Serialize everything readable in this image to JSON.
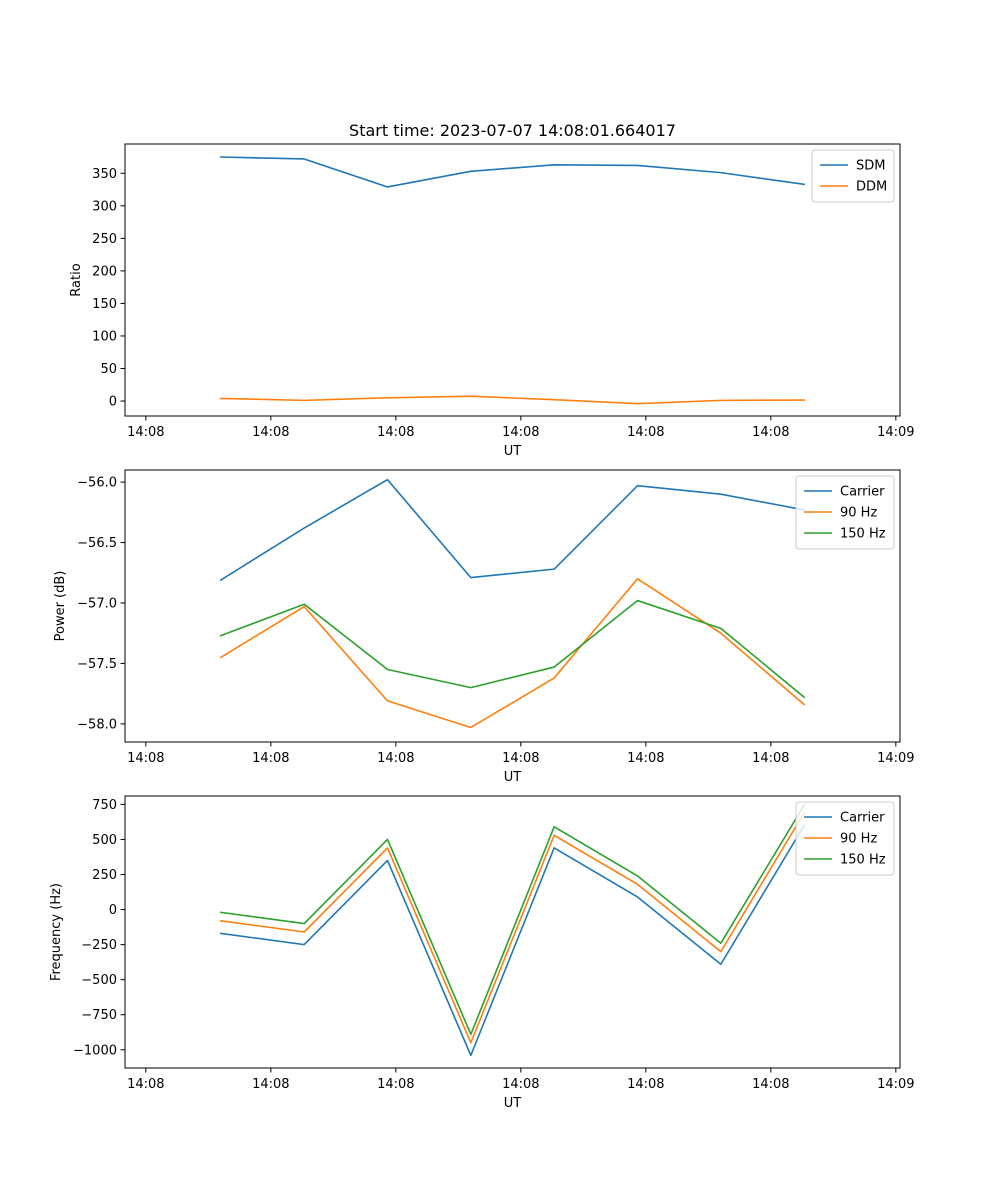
{
  "figure": {
    "title": "Start time: 2023-07-07 14:08:01.664017"
  },
  "chart_data": [
    {
      "type": "line",
      "title": "Start time: 2023-07-07 14:08:01.664017",
      "xlabel": "UT",
      "ylabel": "Ratio",
      "x": [
        0.9,
        1.9,
        2.9,
        3.9,
        4.9,
        5.9,
        6.9,
        7.9
      ],
      "x_ticks": [
        0,
        1.5,
        3,
        4.5,
        6,
        7.5,
        9
      ],
      "x_tick_labels": [
        "14:08",
        "14:08",
        "14:08",
        "14:08",
        "14:08",
        "14:08",
        "14:09"
      ],
      "xlim": [
        -0.25,
        9.05
      ],
      "ylim": [
        -23,
        395
      ],
      "y_ticks": [
        0,
        50,
        100,
        150,
        200,
        250,
        300,
        350
      ],
      "y_tick_labels": [
        "0",
        "50",
        "100",
        "150",
        "200",
        "250",
        "300",
        "350"
      ],
      "legend_position": "top-right",
      "series": [
        {
          "name": "SDM",
          "color": "#1f77b4",
          "values": [
            375,
            372,
            329,
            353,
            363,
            362,
            351,
            333
          ]
        },
        {
          "name": "DDM",
          "color": "#ff7f0e",
          "values": [
            4,
            1,
            5,
            7.5,
            2,
            -4,
            1,
            1.5
          ]
        }
      ]
    },
    {
      "type": "line",
      "title": "",
      "xlabel": "UT",
      "ylabel": "Power (dB)",
      "x": [
        0.9,
        1.9,
        2.9,
        3.9,
        4.9,
        5.9,
        6.9,
        7.9
      ],
      "x_ticks": [
        0,
        1.5,
        3,
        4.5,
        6,
        7.5,
        9
      ],
      "x_tick_labels": [
        "14:08",
        "14:08",
        "14:08",
        "14:08",
        "14:08",
        "14:08",
        "14:09"
      ],
      "xlim": [
        -0.25,
        9.05
      ],
      "ylim": [
        -58.15,
        -55.9
      ],
      "y_ticks": [
        -58.0,
        -57.5,
        -57.0,
        -56.5,
        -56.0
      ],
      "y_tick_labels": [
        "−58.0",
        "−57.5",
        "−57.0",
        "−56.5",
        "−56.0"
      ],
      "legend_position": "top-right",
      "series": [
        {
          "name": "Carrier",
          "color": "#1f77b4",
          "values": [
            -56.81,
            -56.38,
            -55.98,
            -56.79,
            -56.72,
            -56.03,
            -56.1,
            -56.23
          ]
        },
        {
          "name": "90 Hz",
          "color": "#ff7f0e",
          "values": [
            -57.45,
            -57.03,
            -57.81,
            -58.03,
            -57.62,
            -56.8,
            -57.25,
            -57.84
          ]
        },
        {
          "name": "150 Hz",
          "color": "#2ca02c",
          "values": [
            -57.27,
            -57.01,
            -57.55,
            -57.7,
            -57.53,
            -56.98,
            -57.21,
            -57.78
          ]
        }
      ]
    },
    {
      "type": "line",
      "title": "",
      "xlabel": "UT",
      "ylabel": "Frequency (Hz)",
      "x": [
        0.9,
        1.9,
        2.9,
        3.9,
        4.9,
        5.9,
        6.9,
        7.9
      ],
      "x_ticks": [
        0,
        1.5,
        3,
        4.5,
        6,
        7.5,
        9
      ],
      "x_tick_labels": [
        "14:08",
        "14:08",
        "14:08",
        "14:08",
        "14:08",
        "14:08",
        "14:09"
      ],
      "xlim": [
        -0.25,
        9.05
      ],
      "ylim": [
        -1130,
        810
      ],
      "y_ticks": [
        -1000,
        -750,
        -500,
        -250,
        0,
        250,
        500,
        750
      ],
      "y_tick_labels": [
        "−1000",
        "−750",
        "−500",
        "−250",
        "0",
        "250",
        "500",
        "750"
      ],
      "legend_position": "top-right",
      "series": [
        {
          "name": "Carrier",
          "color": "#1f77b4",
          "values": [
            -170,
            -250,
            350,
            -1040,
            440,
            90,
            -390,
            600
          ]
        },
        {
          "name": "90 Hz",
          "color": "#ff7f0e",
          "values": [
            -80,
            -160,
            440,
            -950,
            530,
            180,
            -300,
            690
          ]
        },
        {
          "name": "150 Hz",
          "color": "#2ca02c",
          "values": [
            -20,
            -100,
            500,
            -890,
            590,
            240,
            -240,
            745
          ]
        }
      ]
    }
  ]
}
